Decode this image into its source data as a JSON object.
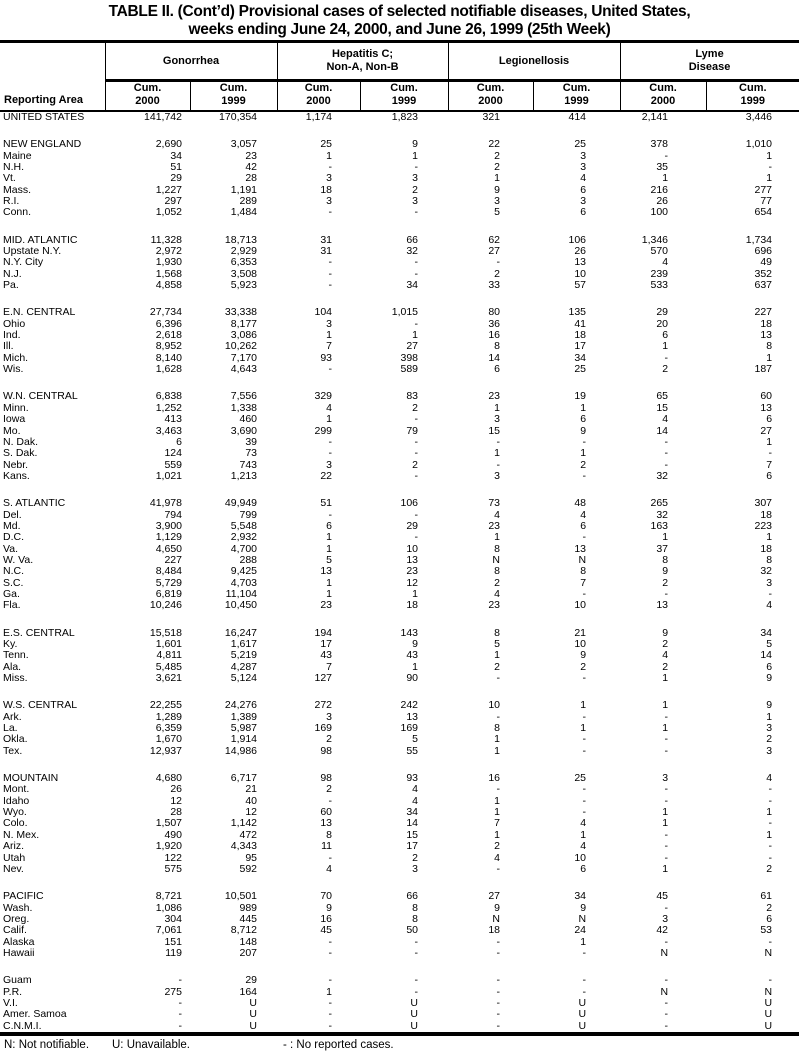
{
  "title_line1": "TABLE II. (Cont’d) Provisional cases of selected notifiable diseases, United States,",
  "title_line2": "weeks ending June 24, 2000, and June 26, 1999 (25th Week)",
  "header": {
    "reporting_area": "Reporting Area",
    "groups": [
      {
        "name": "Gonorrhea"
      },
      {
        "name": "Hepatitis C;\nNon-A, Non-B"
      },
      {
        "name": "Legionellosis"
      },
      {
        "name": "Lyme\nDisease"
      }
    ],
    "sub": [
      "Cum.\n2000",
      "Cum.\n1999"
    ]
  },
  "rows": [
    {
      "area": "UNITED STATES",
      "gap": false,
      "values": [
        "141,742",
        "170,354",
        "1,174",
        "1,823",
        "321",
        "414",
        "2,141",
        "3,446"
      ]
    },
    {
      "area": "NEW ENGLAND",
      "gap": true,
      "values": [
        "2,690",
        "3,057",
        "25",
        "9",
        "22",
        "25",
        "378",
        "1,010"
      ]
    },
    {
      "area": "Maine",
      "gap": false,
      "values": [
        "34",
        "23",
        "1",
        "1",
        "2",
        "3",
        "-",
        "1"
      ]
    },
    {
      "area": "N.H.",
      "gap": false,
      "values": [
        "51",
        "42",
        "-",
        "-",
        "2",
        "3",
        "35",
        "-"
      ]
    },
    {
      "area": "Vt.",
      "gap": false,
      "values": [
        "29",
        "28",
        "3",
        "3",
        "1",
        "4",
        "1",
        "1"
      ]
    },
    {
      "area": "Mass.",
      "gap": false,
      "values": [
        "1,227",
        "1,191",
        "18",
        "2",
        "9",
        "6",
        "216",
        "277"
      ]
    },
    {
      "area": "R.I.",
      "gap": false,
      "values": [
        "297",
        "289",
        "3",
        "3",
        "3",
        "3",
        "26",
        "77"
      ]
    },
    {
      "area": "Conn.",
      "gap": false,
      "values": [
        "1,052",
        "1,484",
        "-",
        "-",
        "5",
        "6",
        "100",
        "654"
      ]
    },
    {
      "area": "MID. ATLANTIC",
      "gap": true,
      "values": [
        "11,328",
        "18,713",
        "31",
        "66",
        "62",
        "106",
        "1,346",
        "1,734"
      ]
    },
    {
      "area": "Upstate N.Y.",
      "gap": false,
      "values": [
        "2,972",
        "2,929",
        "31",
        "32",
        "27",
        "26",
        "570",
        "696"
      ]
    },
    {
      "area": "N.Y. City",
      "gap": false,
      "values": [
        "1,930",
        "6,353",
        "-",
        "-",
        "-",
        "13",
        "4",
        "49"
      ]
    },
    {
      "area": "N.J.",
      "gap": false,
      "values": [
        "1,568",
        "3,508",
        "-",
        "-",
        "2",
        "10",
        "239",
        "352"
      ]
    },
    {
      "area": "Pa.",
      "gap": false,
      "values": [
        "4,858",
        "5,923",
        "-",
        "34",
        "33",
        "57",
        "533",
        "637"
      ]
    },
    {
      "area": "E.N. CENTRAL",
      "gap": true,
      "values": [
        "27,734",
        "33,338",
        "104",
        "1,015",
        "80",
        "135",
        "29",
        "227"
      ]
    },
    {
      "area": "Ohio",
      "gap": false,
      "values": [
        "6,396",
        "8,177",
        "3",
        "-",
        "36",
        "41",
        "20",
        "18"
      ]
    },
    {
      "area": "Ind.",
      "gap": false,
      "values": [
        "2,618",
        "3,086",
        "1",
        "1",
        "16",
        "18",
        "6",
        "13"
      ]
    },
    {
      "area": "Ill.",
      "gap": false,
      "values": [
        "8,952",
        "10,262",
        "7",
        "27",
        "8",
        "17",
        "1",
        "8"
      ]
    },
    {
      "area": "Mich.",
      "gap": false,
      "values": [
        "8,140",
        "7,170",
        "93",
        "398",
        "14",
        "34",
        "-",
        "1"
      ]
    },
    {
      "area": "Wis.",
      "gap": false,
      "values": [
        "1,628",
        "4,643",
        "-",
        "589",
        "6",
        "25",
        "2",
        "187"
      ]
    },
    {
      "area": "W.N. CENTRAL",
      "gap": true,
      "values": [
        "6,838",
        "7,556",
        "329",
        "83",
        "23",
        "19",
        "65",
        "60"
      ]
    },
    {
      "area": "Minn.",
      "gap": false,
      "values": [
        "1,252",
        "1,338",
        "4",
        "2",
        "1",
        "1",
        "15",
        "13"
      ]
    },
    {
      "area": "Iowa",
      "gap": false,
      "values": [
        "413",
        "460",
        "1",
        "-",
        "3",
        "6",
        "4",
        "6"
      ]
    },
    {
      "area": "Mo.",
      "gap": false,
      "values": [
        "3,463",
        "3,690",
        "299",
        "79",
        "15",
        "9",
        "14",
        "27"
      ]
    },
    {
      "area": "N. Dak.",
      "gap": false,
      "values": [
        "6",
        "39",
        "-",
        "-",
        "-",
        "-",
        "-",
        "1"
      ]
    },
    {
      "area": "S. Dak.",
      "gap": false,
      "values": [
        "124",
        "73",
        "-",
        "-",
        "1",
        "1",
        "-",
        "-"
      ]
    },
    {
      "area": "Nebr.",
      "gap": false,
      "values": [
        "559",
        "743",
        "3",
        "2",
        "-",
        "2",
        "-",
        "7"
      ]
    },
    {
      "area": "Kans.",
      "gap": false,
      "values": [
        "1,021",
        "1,213",
        "22",
        "-",
        "3",
        "-",
        "32",
        "6"
      ]
    },
    {
      "area": "S. ATLANTIC",
      "gap": true,
      "values": [
        "41,978",
        "49,949",
        "51",
        "106",
        "73",
        "48",
        "265",
        "307"
      ]
    },
    {
      "area": "Del.",
      "gap": false,
      "values": [
        "794",
        "799",
        "-",
        "-",
        "4",
        "4",
        "32",
        "18"
      ]
    },
    {
      "area": "Md.",
      "gap": false,
      "values": [
        "3,900",
        "5,548",
        "6",
        "29",
        "23",
        "6",
        "163",
        "223"
      ]
    },
    {
      "area": "D.C.",
      "gap": false,
      "values": [
        "1,129",
        "2,932",
        "1",
        "-",
        "1",
        "-",
        "1",
        "1"
      ]
    },
    {
      "area": "Va.",
      "gap": false,
      "values": [
        "4,650",
        "4,700",
        "1",
        "10",
        "8",
        "13",
        "37",
        "18"
      ]
    },
    {
      "area": "W. Va.",
      "gap": false,
      "values": [
        "227",
        "288",
        "5",
        "13",
        "N",
        "N",
        "8",
        "8"
      ]
    },
    {
      "area": "N.C.",
      "gap": false,
      "values": [
        "8,484",
        "9,425",
        "13",
        "23",
        "8",
        "8",
        "9",
        "32"
      ]
    },
    {
      "area": "S.C.",
      "gap": false,
      "values": [
        "5,729",
        "4,703",
        "1",
        "12",
        "2",
        "7",
        "2",
        "3"
      ]
    },
    {
      "area": "Ga.",
      "gap": false,
      "values": [
        "6,819",
        "11,104",
        "1",
        "1",
        "4",
        "-",
        "-",
        "-"
      ]
    },
    {
      "area": "Fla.",
      "gap": false,
      "values": [
        "10,246",
        "10,450",
        "23",
        "18",
        "23",
        "10",
        "13",
        "4"
      ]
    },
    {
      "area": "E.S. CENTRAL",
      "gap": true,
      "values": [
        "15,518",
        "16,247",
        "194",
        "143",
        "8",
        "21",
        "9",
        "34"
      ]
    },
    {
      "area": "Ky.",
      "gap": false,
      "values": [
        "1,601",
        "1,617",
        "17",
        "9",
        "5",
        "10",
        "2",
        "5"
      ]
    },
    {
      "area": "Tenn.",
      "gap": false,
      "values": [
        "4,811",
        "5,219",
        "43",
        "43",
        "1",
        "9",
        "4",
        "14"
      ]
    },
    {
      "area": "Ala.",
      "gap": false,
      "values": [
        "5,485",
        "4,287",
        "7",
        "1",
        "2",
        "2",
        "2",
        "6"
      ]
    },
    {
      "area": "Miss.",
      "gap": false,
      "values": [
        "3,621",
        "5,124",
        "127",
        "90",
        "-",
        "-",
        "1",
        "9"
      ]
    },
    {
      "area": "W.S. CENTRAL",
      "gap": true,
      "values": [
        "22,255",
        "24,276",
        "272",
        "242",
        "10",
        "1",
        "1",
        "9"
      ]
    },
    {
      "area": "Ark.",
      "gap": false,
      "values": [
        "1,289",
        "1,389",
        "3",
        "13",
        "-",
        "-",
        "-",
        "1"
      ]
    },
    {
      "area": "La.",
      "gap": false,
      "values": [
        "6,359",
        "5,987",
        "169",
        "169",
        "8",
        "1",
        "1",
        "3"
      ]
    },
    {
      "area": "Okla.",
      "gap": false,
      "values": [
        "1,670",
        "1,914",
        "2",
        "5",
        "1",
        "-",
        "-",
        "2"
      ]
    },
    {
      "area": "Tex.",
      "gap": false,
      "values": [
        "12,937",
        "14,986",
        "98",
        "55",
        "1",
        "-",
        "-",
        "3"
      ]
    },
    {
      "area": "MOUNTAIN",
      "gap": true,
      "values": [
        "4,680",
        "6,717",
        "98",
        "93",
        "16",
        "25",
        "3",
        "4"
      ]
    },
    {
      "area": "Mont.",
      "gap": false,
      "values": [
        "26",
        "21",
        "2",
        "4",
        "-",
        "-",
        "-",
        "-"
      ]
    },
    {
      "area": "Idaho",
      "gap": false,
      "values": [
        "12",
        "40",
        "-",
        "4",
        "1",
        "-",
        "-",
        "-"
      ]
    },
    {
      "area": "Wyo.",
      "gap": false,
      "values": [
        "28",
        "12",
        "60",
        "34",
        "1",
        "-",
        "1",
        "1"
      ]
    },
    {
      "area": "Colo.",
      "gap": false,
      "values": [
        "1,507",
        "1,142",
        "13",
        "14",
        "7",
        "4",
        "1",
        "-"
      ]
    },
    {
      "area": "N. Mex.",
      "gap": false,
      "values": [
        "490",
        "472",
        "8",
        "15",
        "1",
        "1",
        "-",
        "1"
      ]
    },
    {
      "area": "Ariz.",
      "gap": false,
      "values": [
        "1,920",
        "4,343",
        "11",
        "17",
        "2",
        "4",
        "-",
        "-"
      ]
    },
    {
      "area": "Utah",
      "gap": false,
      "values": [
        "122",
        "95",
        "-",
        "2",
        "4",
        "10",
        "-",
        "-"
      ]
    },
    {
      "area": "Nev.",
      "gap": false,
      "values": [
        "575",
        "592",
        "4",
        "3",
        "-",
        "6",
        "1",
        "2"
      ]
    },
    {
      "area": "PACIFIC",
      "gap": true,
      "values": [
        "8,721",
        "10,501",
        "70",
        "66",
        "27",
        "34",
        "45",
        "61"
      ]
    },
    {
      "area": "Wash.",
      "gap": false,
      "values": [
        "1,086",
        "989",
        "9",
        "8",
        "9",
        "9",
        "-",
        "2"
      ]
    },
    {
      "area": "Oreg.",
      "gap": false,
      "values": [
        "304",
        "445",
        "16",
        "8",
        "N",
        "N",
        "3",
        "6"
      ]
    },
    {
      "area": "Calif.",
      "gap": false,
      "values": [
        "7,061",
        "8,712",
        "45",
        "50",
        "18",
        "24",
        "42",
        "53"
      ]
    },
    {
      "area": "Alaska",
      "gap": false,
      "values": [
        "151",
        "148",
        "-",
        "-",
        "-",
        "1",
        "-",
        "-"
      ]
    },
    {
      "area": "Hawaii",
      "gap": false,
      "values": [
        "119",
        "207",
        "-",
        "-",
        "-",
        "-",
        "N",
        "N"
      ]
    },
    {
      "area": "Guam",
      "gap": true,
      "values": [
        "-",
        "29",
        "-",
        "-",
        "-",
        "-",
        "-",
        "-"
      ]
    },
    {
      "area": "P.R.",
      "gap": false,
      "values": [
        "275",
        "164",
        "1",
        "-",
        "-",
        "-",
        "N",
        "N"
      ]
    },
    {
      "area": "V.I.",
      "gap": false,
      "values": [
        "-",
        "U",
        "-",
        "U",
        "-",
        "U",
        "-",
        "U"
      ]
    },
    {
      "area": "Amer. Samoa",
      "gap": false,
      "values": [
        "-",
        "U",
        "-",
        "U",
        "-",
        "U",
        "-",
        "U"
      ]
    },
    {
      "area": "C.N.M.I.",
      "gap": false,
      "values": [
        "-",
        "U",
        "-",
        "U",
        "-",
        "U",
        "-",
        "U"
      ]
    }
  ],
  "footnotes": [
    "N: Not notifiable.",
    "U: Unavailable.",
    "- : No reported cases."
  ]
}
